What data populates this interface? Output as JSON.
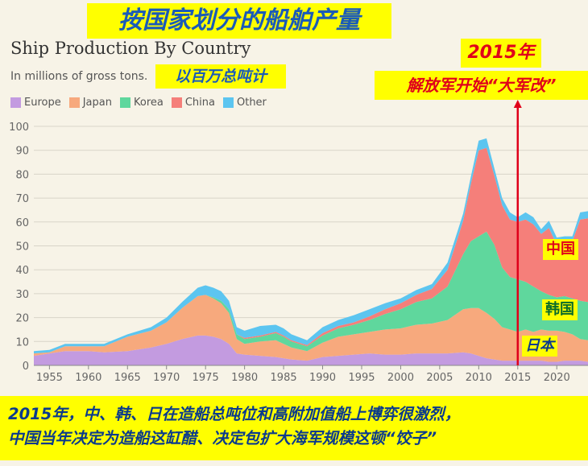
{
  "banners": {
    "title_cn": "按国家划分的船舶产量",
    "units_cn": "以百万总吨计",
    "year": "2015年",
    "reform": "解放军开始“大军改”",
    "bottom_line1": "2015年，中、韩、日在造船总吨位和高附加值船上博弈很激烈，",
    "bottom_line2": "中国当年决定为造船这缸醋、决定包扩大海军规模这顿“饺子”"
  },
  "labels": {
    "china": "中国",
    "korea": "韩国",
    "japan": "日本"
  },
  "chart_data": {
    "type": "area",
    "title": "Ship Production By Country",
    "subtitle": "In millions of gross tons.",
    "xlim": [
      1953,
      2024
    ],
    "ylim": [
      0,
      100
    ],
    "y_ticks": [
      0,
      10,
      20,
      30,
      40,
      50,
      60,
      70,
      80,
      90,
      100
    ],
    "x_ticks": [
      1955,
      1960,
      1965,
      1970,
      1975,
      1980,
      1985,
      1990,
      1995,
      2000,
      2005,
      2010,
      2015,
      2020
    ],
    "x": [
      1953,
      1955,
      1957,
      1960,
      1962,
      1965,
      1968,
      1970,
      1972,
      1974,
      1975,
      1976,
      1977,
      1978,
      1979,
      1980,
      1982,
      1984,
      1985,
      1986,
      1988,
      1990,
      1992,
      1994,
      1996,
      1998,
      2000,
      2002,
      2004,
      2006,
      2008,
      2009,
      2010,
      2011,
      2012,
      2013,
      2014,
      2015,
      2016,
      2017,
      2018,
      2019,
      2020,
      2021,
      2022,
      2023,
      2024
    ],
    "series": [
      {
        "name": "Europe",
        "color": "#c39be0",
        "values": [
          4,
          5,
          6,
          6,
          5.5,
          6,
          7.5,
          9,
          11,
          12.5,
          12.5,
          12,
          11,
          9,
          5,
          4.5,
          4,
          3.5,
          3,
          2.5,
          2,
          3.5,
          4,
          4.5,
          5,
          4.5,
          4.5,
          5,
          5,
          5,
          5.5,
          5,
          4,
          3,
          2.5,
          2,
          2,
          2,
          2,
          2,
          2,
          1.5,
          1.5,
          2,
          2,
          2,
          1.5
        ]
      },
      {
        "name": "Japan",
        "color": "#f7a97d",
        "values": [
          1,
          0.5,
          2,
          2,
          2.5,
          6,
          7,
          9,
          13,
          16.5,
          17,
          16,
          15,
          13,
          6,
          4.5,
          6,
          7,
          6,
          5,
          4,
          6,
          8,
          8.5,
          9,
          10.5,
          11,
          12,
          12.5,
          14,
          18,
          19,
          20,
          19,
          17,
          14,
          13,
          12,
          13,
          12,
          13,
          13,
          13,
          12,
          11,
          9,
          9
        ]
      },
      {
        "name": "Korea",
        "color": "#5fd79d",
        "values": [
          0,
          0,
          0,
          0,
          0,
          0,
          0,
          0,
          0,
          0,
          0,
          0.5,
          1,
          1.5,
          2,
          2,
          2,
          3,
          3,
          2.5,
          2,
          3,
          3.5,
          4,
          5,
          6.5,
          8,
          9.5,
          10.5,
          14,
          23,
          28,
          30,
          34,
          31,
          25,
          22,
          22,
          20,
          19,
          16,
          15,
          14,
          15,
          15,
          16,
          16
        ]
      },
      {
        "name": "China",
        "color": "#f57f7a",
        "values": [
          0,
          0,
          0,
          0,
          0,
          0,
          0,
          0,
          0,
          0,
          0,
          0,
          0,
          0,
          0,
          0.5,
          0.5,
          0.5,
          0.5,
          0.5,
          0.5,
          1,
          1,
          1,
          1.5,
          2,
          2.5,
          3,
          4,
          7,
          14,
          24,
          36,
          35,
          29,
          26,
          24,
          24,
          26,
          26,
          24,
          28,
          22,
          23,
          24,
          34,
          35
        ]
      },
      {
        "name": "Other",
        "color": "#5cc5f0",
        "values": [
          1,
          1,
          1,
          1,
          1,
          1,
          1.5,
          2,
          2.5,
          3.5,
          4,
          4,
          4,
          3.5,
          3,
          3,
          4,
          3,
          3,
          2.5,
          2,
          2.5,
          2.5,
          3,
          3,
          2.5,
          2,
          2,
          2,
          3,
          3,
          3,
          4,
          4,
          3,
          3,
          3,
          2,
          3,
          3,
          2,
          3,
          3,
          2,
          2,
          3,
          3
        ]
      }
    ]
  }
}
